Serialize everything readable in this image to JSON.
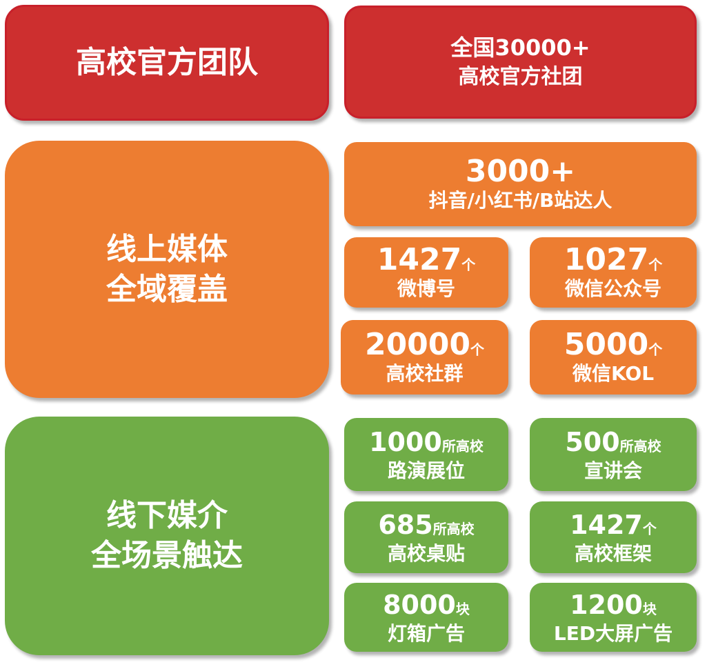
{
  "colors": {
    "red": "#CD2F2F",
    "orange": "#ED7D31",
    "green": "#70AD47"
  },
  "team": {
    "title": "高校官方团队",
    "stat_line1": "全国30000+",
    "stat_line2": "高校官方社团"
  },
  "online": {
    "title_line1": "线上媒体",
    "title_line2": "全域覆盖",
    "top": {
      "number": "3000+",
      "label": "抖音/小红书/B站达人"
    },
    "items": [
      {
        "number": "1427",
        "unit": "个",
        "label": "微博号"
      },
      {
        "number": "1027",
        "unit": "个",
        "label": "微信公众号"
      },
      {
        "number": "20000",
        "unit": "个",
        "label": "高校社群"
      },
      {
        "number": "5000",
        "unit": "个",
        "label": "微信KOL"
      }
    ]
  },
  "offline": {
    "title_line1": "线下媒介",
    "title_line2": "全场景触达",
    "items": [
      {
        "number": "1000",
        "unit": "所高校",
        "label": "路演展位"
      },
      {
        "number": "500",
        "unit": "所高校",
        "label": "宣讲会"
      },
      {
        "number": "685",
        "unit": "所高校",
        "label": "高校桌贴"
      },
      {
        "number": "1427",
        "unit": "个",
        "label": "高校框架"
      },
      {
        "number": "8000",
        "unit": "块",
        "label": "灯箱广告"
      },
      {
        "number": "1200",
        "unit": "块",
        "label": "LED大屏广告"
      }
    ]
  }
}
